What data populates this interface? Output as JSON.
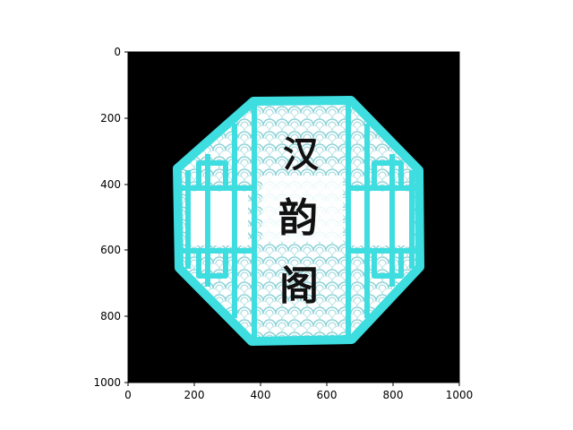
{
  "axes": {
    "x_ticks": [
      "0",
      "200",
      "400",
      "600",
      "800",
      "1000"
    ],
    "y_ticks": [
      "0",
      "200",
      "400",
      "600",
      "800",
      "1000"
    ],
    "xlim": [
      0,
      1000
    ],
    "ylim": [
      1000,
      0
    ]
  },
  "image": {
    "subject": "octagonal-lattice-emblem",
    "background_color": "#000000",
    "frame_color": "#3ddde0",
    "wave_color": "#8fd3d8",
    "calligraphy": [
      "汉",
      "韵",
      "阁"
    ]
  }
}
